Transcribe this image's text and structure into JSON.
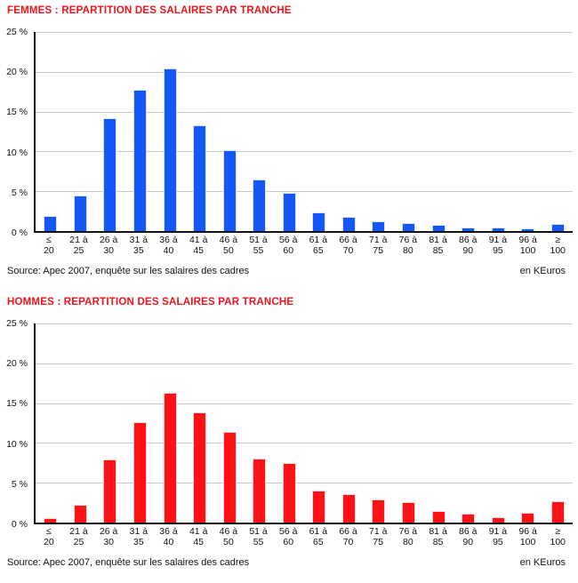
{
  "chart_data": [
    {
      "type": "bar",
      "title": "FEMMES : REPARTITION DES SALAIRES PAR TRANCHE",
      "title_color": "#f2121b",
      "bar_color": "#1557f7",
      "bar_border_color": "#d8e2fb",
      "source": "Source: Apec 2007, enquête sur les salaires des cadres",
      "unit_label": "en KEuros",
      "ylim": [
        0,
        25
      ],
      "ytick_labels": [
        "25 %",
        "20 %",
        "15 %",
        "10 %",
        "5 %",
        "0 %"
      ],
      "grid": true,
      "legend": "none",
      "categories": [
        [
          "≤",
          "20"
        ],
        [
          "21 à",
          "25"
        ],
        [
          "26 à",
          "30"
        ],
        [
          "31 à",
          "35"
        ],
        [
          "36 à",
          "40"
        ],
        [
          "41 à",
          "45"
        ],
        [
          "46 à",
          "50"
        ],
        [
          "51 à",
          "55"
        ],
        [
          "56 à",
          "60"
        ],
        [
          "61 à",
          "65"
        ],
        [
          "66 à",
          "70"
        ],
        [
          "71 à",
          "75"
        ],
        [
          "76 à",
          "80"
        ],
        [
          "81 à",
          "85"
        ],
        [
          "86 à",
          "90"
        ],
        [
          "91 à",
          "95"
        ],
        [
          "96 à",
          "100"
        ],
        [
          "≥",
          "100"
        ]
      ],
      "values": [
        1.9,
        4.5,
        14.2,
        17.8,
        20.4,
        13.3,
        10.2,
        6.5,
        4.8,
        2.4,
        1.8,
        1.2,
        1.0,
        0.8,
        0.5,
        0.4,
        0.3,
        0.9
      ]
    },
    {
      "type": "bar",
      "title": "HOMMES : REPARTITION DES SALAIRES PAR TRANCHE",
      "title_color": "#f2121b",
      "bar_color": "#ff1115",
      "bar_border_color": "#ffd6d6",
      "source": "Source: Apec 2007, enquête sur les salaires des cadres",
      "unit_label": "en KEuros",
      "ylim": [
        0,
        25
      ],
      "ytick_labels": [
        "25 %",
        "20 %",
        "15 %",
        "10 %",
        "5 %",
        "0 %"
      ],
      "grid": true,
      "legend": "none",
      "categories": [
        [
          "≤",
          "20"
        ],
        [
          "21 à",
          "25"
        ],
        [
          "26 à",
          "30"
        ],
        [
          "31 à",
          "35"
        ],
        [
          "36 à",
          "40"
        ],
        [
          "41 à",
          "45"
        ],
        [
          "46 à",
          "50"
        ],
        [
          "51 à",
          "55"
        ],
        [
          "56 à",
          "60"
        ],
        [
          "61 à",
          "65"
        ],
        [
          "66 à",
          "70"
        ],
        [
          "71 à",
          "75"
        ],
        [
          "76 à",
          "80"
        ],
        [
          "81 à",
          "85"
        ],
        [
          "86 à",
          "90"
        ],
        [
          "91 à",
          "95"
        ],
        [
          "96 à",
          "100"
        ],
        [
          "≥",
          "100"
        ]
      ],
      "values": [
        0.6,
        2.2,
        7.9,
        12.6,
        16.3,
        13.8,
        11.4,
        8.0,
        7.5,
        4.0,
        3.6,
        2.9,
        2.6,
        1.5,
        1.1,
        0.7,
        1.2,
        2.7
      ]
    }
  ]
}
